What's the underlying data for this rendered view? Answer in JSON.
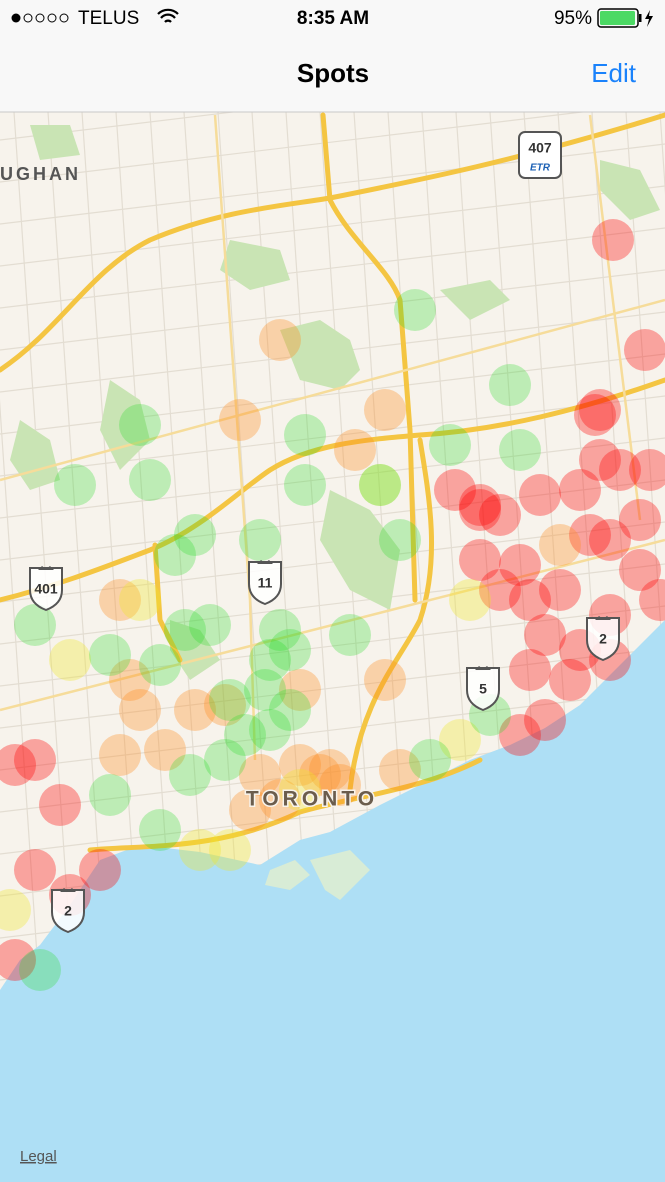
{
  "status_bar": {
    "carrier": "TELUS",
    "time": "8:35 AM",
    "battery": "95%"
  },
  "nav_bar": {
    "title": "Spots",
    "edit_button": "Edit"
  },
  "map": {
    "labels": [
      "UGHAN",
      "TORONTO"
    ],
    "shields": [
      "407",
      "ETR",
      "401",
      "11",
      "5",
      "2",
      "2"
    ],
    "legal": "Legal"
  }
}
